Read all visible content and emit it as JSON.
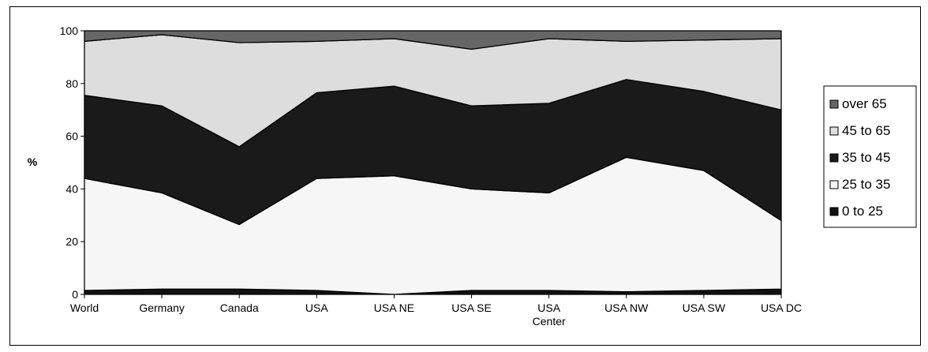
{
  "chart_data": {
    "type": "area",
    "stacked": true,
    "categories": [
      "World",
      "Germany",
      "Canada",
      "USA",
      "USA NE",
      "USA SE",
      "USA Center",
      "USA NW",
      "USA SW",
      "USA DC"
    ],
    "category_lines": [
      [
        "World"
      ],
      [
        "Germany"
      ],
      [
        "Canada"
      ],
      [
        "USA"
      ],
      [
        "USA NE"
      ],
      [
        "USA SE"
      ],
      [
        "USA",
        "Center"
      ],
      [
        "USA NW"
      ],
      [
        "USA SW"
      ],
      [
        "USA DC"
      ]
    ],
    "ylabel": "%",
    "ylim": [
      0,
      100
    ],
    "yticks": [
      0,
      20,
      40,
      60,
      80,
      100
    ],
    "legend_position": "right",
    "series": [
      {
        "name": "0 to 25",
        "color": "#111111",
        "values": [
          1.5,
          2,
          2,
          1.5,
          0,
          1.5,
          1.5,
          1,
          1.5,
          2
        ]
      },
      {
        "name": "25 to 35",
        "color": "#f6f6f6",
        "values": [
          42.5,
          36.5,
          24.5,
          42.5,
          45,
          38.5,
          37,
          51,
          45.5,
          26
        ]
      },
      {
        "name": "35 to 45",
        "color": "#1a1a1a",
        "values": [
          31.5,
          33,
          29.5,
          32.5,
          34,
          31.5,
          34,
          29.5,
          30,
          42
        ]
      },
      {
        "name": "45 to 65",
        "color": "#dddddd",
        "values": [
          20.5,
          27,
          39.5,
          19.5,
          18,
          21.5,
          24.5,
          14.5,
          19.5,
          27
        ]
      },
      {
        "name": "over 65",
        "color": "#666666",
        "values": [
          4,
          1.5,
          4.5,
          4,
          3,
          7,
          3,
          4,
          3.5,
          3
        ]
      }
    ]
  }
}
